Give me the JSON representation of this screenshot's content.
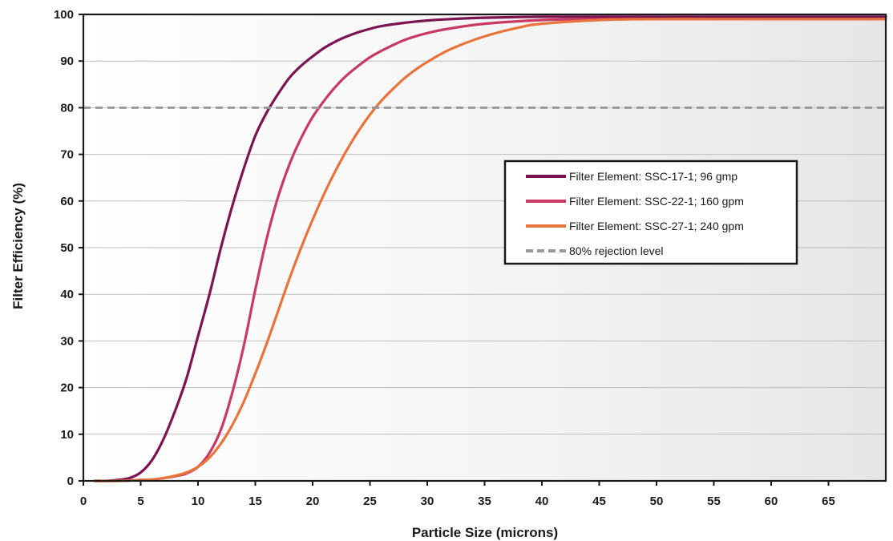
{
  "chart_data": {
    "type": "line",
    "xlabel": "Particle Size (microns)",
    "ylabel": "Filter Efficiency (%)",
    "xlim": [
      0,
      70
    ],
    "ylim": [
      0,
      100
    ],
    "x_ticks": [
      0,
      5,
      10,
      15,
      20,
      25,
      30,
      35,
      40,
      45,
      50,
      55,
      60,
      65
    ],
    "y_ticks": [
      0,
      10,
      20,
      30,
      40,
      50,
      60,
      70,
      80,
      90,
      100
    ],
    "grid": "horizontal",
    "legend_position": "center-right",
    "series": [
      {
        "name": "Filter Element: SSC-17-1; 96 gmp",
        "color": "#7b1450",
        "x": [
          1,
          2,
          3,
          4,
          5,
          6,
          7,
          8,
          9,
          10,
          11,
          12,
          13,
          14,
          15,
          16,
          17,
          18,
          19,
          20,
          21,
          22,
          23,
          24,
          25,
          26,
          28,
          30,
          32,
          35,
          40,
          45,
          50,
          55,
          60,
          65,
          70
        ],
        "y": [
          0,
          0,
          0.2,
          0.6,
          1.8,
          4.5,
          9,
          15,
          22,
          31,
          40,
          50,
          59,
          67,
          74,
          79,
          83,
          86.5,
          89,
          91,
          92.8,
          94.2,
          95.3,
          96.2,
          96.9,
          97.5,
          98.2,
          98.7,
          99,
          99.3,
          99.5,
          99.5,
          99.5,
          99.5,
          99.5,
          99.5,
          99.5
        ]
      },
      {
        "name": "Filter Element: SSC-22-1; 160 gpm",
        "color": "#c83a63",
        "x": [
          1,
          3,
          5,
          6,
          7,
          8,
          9,
          10,
          11,
          12,
          13,
          14,
          15,
          16,
          17,
          18,
          19,
          20,
          21,
          22,
          23,
          24,
          25,
          26,
          28,
          30,
          32,
          35,
          40,
          45,
          50,
          55,
          60,
          65,
          70
        ],
        "y": [
          0,
          0,
          0.2,
          0.3,
          0.6,
          1,
          1.6,
          3,
          6,
          11,
          19,
          29,
          41,
          52,
          61,
          68,
          73.5,
          78,
          81.5,
          84.5,
          87,
          89,
          90.8,
          92.2,
          94.5,
          96,
          97,
          98,
          98.8,
          99,
          99,
          99,
          99,
          99,
          99
        ]
      },
      {
        "name": "Filter Element: SSC-27-1; 240 gpm",
        "color": "#e8743c",
        "x": [
          1,
          3,
          5,
          6,
          7,
          8,
          9,
          10,
          11,
          12,
          13,
          14,
          15,
          16,
          17,
          18,
          19,
          20,
          21,
          22,
          23,
          24,
          25,
          26,
          27,
          28,
          29,
          30,
          32,
          35,
          38,
          40,
          45,
          50,
          55,
          60,
          65,
          70
        ],
        "y": [
          0,
          0,
          0.2,
          0.3,
          0.6,
          1.1,
          1.8,
          3,
          5,
          8,
          12,
          17,
          23,
          29.5,
          36.5,
          43.5,
          50,
          56,
          61.5,
          66.5,
          71,
          75,
          78.5,
          81.5,
          84,
          86.3,
          88.2,
          89.8,
          92.5,
          95.3,
          97.2,
          98,
          98.8,
          99,
          99,
          99,
          99,
          99
        ]
      },
      {
        "name": "80% rejection level",
        "color": "#999999",
        "dashed": true,
        "x": [
          0,
          70
        ],
        "y": [
          80,
          80
        ]
      }
    ]
  }
}
